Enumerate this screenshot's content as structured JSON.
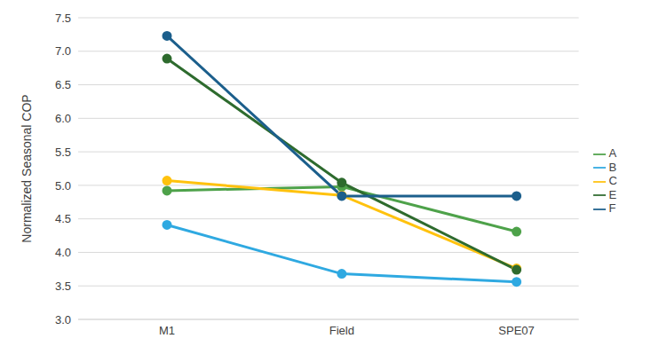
{
  "chart_data": {
    "type": "line",
    "y_label": "Normalized Seasonal COP",
    "categories": [
      "M1",
      "Field",
      "SPE07"
    ],
    "series": [
      {
        "name": "A",
        "color": "#4ea24a",
        "values": [
          4.92,
          4.98,
          4.31
        ]
      },
      {
        "name": "B",
        "color": "#2fa9e1",
        "values": [
          4.41,
          3.68,
          3.56
        ]
      },
      {
        "name": "C",
        "color": "#ffc20e",
        "values": [
          5.07,
          4.85,
          3.76
        ]
      },
      {
        "name": "E",
        "color": "#2e6b2e",
        "values": [
          6.89,
          5.04,
          3.74
        ]
      },
      {
        "name": "F",
        "color": "#1c5f8c",
        "values": [
          7.23,
          4.84,
          4.84
        ]
      }
    ],
    "ylim": [
      3,
      7.5
    ],
    "yticks": [
      {
        "value": 3,
        "label": "3.0"
      },
      3.5,
      {
        "value": 4,
        "label": "4.0"
      },
      4.5,
      {
        "value": 5,
        "label": "5.0"
      },
      5.5,
      {
        "value": 6,
        "label": "6.0"
      },
      6.5,
      {
        "value": 7,
        "label": "7.0"
      },
      7.5
    ],
    "grid": true,
    "legend": "right",
    "marker": "circle",
    "line_style": "solid"
  }
}
